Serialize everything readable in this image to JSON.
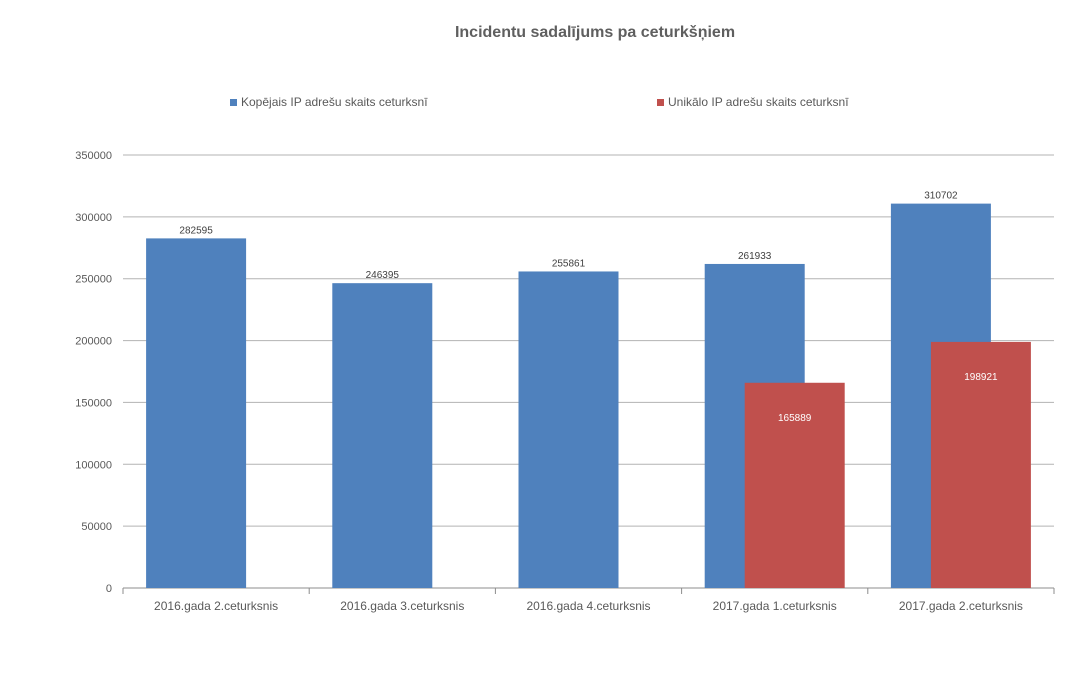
{
  "chart_data": {
    "type": "bar",
    "title": "Incidentu sadalījums pa ceturkšņiem",
    "categories": [
      "2016.gada  2.ceturksnis",
      "2016.gada  3.ceturksnis",
      "2016.gada  4.ceturksnis",
      "2017.gada  1.ceturksnis",
      "2017.gada  2.ceturksnis"
    ],
    "series": [
      {
        "name": "Kopējais IP adrešu skaits ceturksnī",
        "color": "#4f81bd",
        "values": [
          282595,
          246395,
          255861,
          261933,
          310702
        ]
      },
      {
        "name": "Unikālo IP adrešu skaits ceturksnī",
        "color": "#c0504d",
        "values": [
          null,
          null,
          null,
          165889,
          198921
        ]
      }
    ],
    "ylim": [
      0,
      350000
    ],
    "yticks": [
      0,
      50000,
      100000,
      150000,
      200000,
      250000,
      300000,
      350000
    ],
    "grid": true,
    "legend_position": "top"
  }
}
